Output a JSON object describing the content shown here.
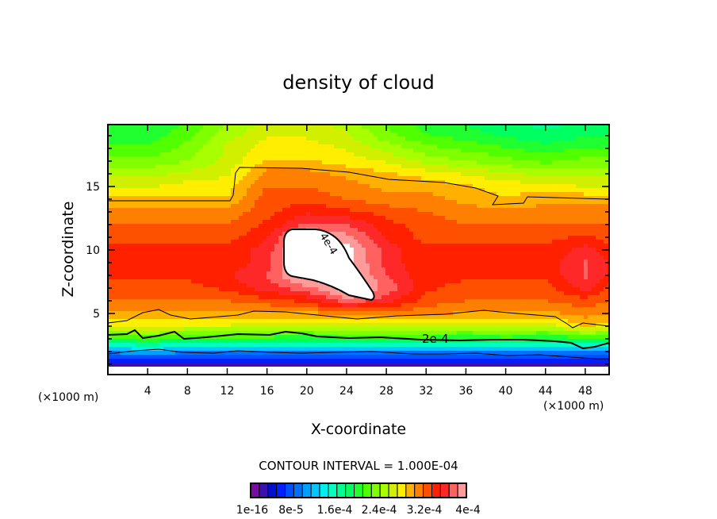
{
  "chart_data": {
    "type": "heatmap",
    "subtype": "filled-contour",
    "title": "density of cloud",
    "xlabel": "X-coordinate",
    "ylabel": "Z-coordinate",
    "x_unit_label": "(×1000 m)",
    "z_unit_label": "(×1000 m)",
    "xlim": [
      0,
      50.4
    ],
    "ylim": [
      0.19,
      19.875
    ],
    "x_ticks": [
      4,
      8,
      12,
      16,
      20,
      24,
      28,
      32,
      36,
      40,
      44,
      48
    ],
    "y_ticks": [
      5,
      10,
      15
    ],
    "contour_interval_text": "CONTOUR INTERVAL = 1.000E-04",
    "contour_labels": [
      "2e-4",
      "4e-4"
    ],
    "colorbar": {
      "labels": [
        "1e-16",
        "8e-5",
        "1.6e-4",
        "2.4e-4",
        "3.2e-4",
        "4e-4"
      ],
      "range": [
        0,
        0.0004
      ],
      "levels": 25,
      "colors": [
        "#7a0aa5",
        "#3a10b0",
        "#0010d0",
        "#0020ff",
        "#0050ff",
        "#0070ff",
        "#00a0ff",
        "#00c8ff",
        "#00f0f0",
        "#00ffc0",
        "#00ff90",
        "#00ff60",
        "#20ff30",
        "#50ff00",
        "#80ff00",
        "#a8ff00",
        "#d0f000",
        "#ffee00",
        "#ffb000",
        "#ff8000",
        "#ff5000",
        "#ff2000",
        "#ff2828",
        "#ff6060",
        "#ff9a9a"
      ]
    },
    "value_scale": 0.0001,
    "grid_x": [
      0,
      4,
      8,
      12,
      16,
      20,
      24,
      28,
      32,
      36,
      40,
      44,
      48,
      50.4
    ],
    "grid_z": [
      20,
      19,
      18,
      17,
      16,
      15,
      14,
      13,
      12,
      11,
      10,
      9,
      8,
      7,
      6,
      5,
      4,
      3,
      2,
      1,
      0
    ],
    "values": [
      [
        1.9,
        1.9,
        2.1,
        2.4,
        2.6,
        2.6,
        2.5,
        2.2,
        2.0,
        1.9,
        1.8,
        1.7,
        1.8,
        1.8
      ],
      [
        2.0,
        2.0,
        2.2,
        2.5,
        2.7,
        2.7,
        2.6,
        2.3,
        2.1,
        2.0,
        1.9,
        1.8,
        1.9,
        1.9
      ],
      [
        2.1,
        2.1,
        2.3,
        2.6,
        2.8,
        2.8,
        2.7,
        2.5,
        2.3,
        2.2,
        2.1,
        2.0,
        2.1,
        2.1
      ],
      [
        2.3,
        2.3,
        2.4,
        2.6,
        2.9,
        2.9,
        2.8,
        2.7,
        2.5,
        2.4,
        2.3,
        2.2,
        2.3,
        2.3
      ],
      [
        2.5,
        2.5,
        2.6,
        2.7,
        3.1,
        3.1,
        3.0,
        2.9,
        2.8,
        2.7,
        2.6,
        2.5,
        2.5,
        2.5
      ],
      [
        2.7,
        2.7,
        2.8,
        2.8,
        3.2,
        3.2,
        3.1,
        3.0,
        3.0,
        2.9,
        2.8,
        2.8,
        2.7,
        2.7
      ],
      [
        2.9,
        2.9,
        2.9,
        2.9,
        3.3,
        3.3,
        3.2,
        3.1,
        3.1,
        3.0,
        2.9,
        3.0,
        3.0,
        3.0
      ],
      [
        3.1,
        3.1,
        3.1,
        3.1,
        3.3,
        3.5,
        3.4,
        3.3,
        3.2,
        3.1,
        3.1,
        3.1,
        3.1,
        3.1
      ],
      [
        3.2,
        3.2,
        3.2,
        3.2,
        3.4,
        3.7,
        3.7,
        3.4,
        3.3,
        3.2,
        3.2,
        3.2,
        3.2,
        3.2
      ],
      [
        3.3,
        3.3,
        3.3,
        3.3,
        3.5,
        4.1,
        3.9,
        3.5,
        3.3,
        3.3,
        3.3,
        3.3,
        3.4,
        3.3
      ],
      [
        3.4,
        3.4,
        3.4,
        3.4,
        3.6,
        4.2,
        4.1,
        3.6,
        3.4,
        3.4,
        3.4,
        3.4,
        3.6,
        3.4
      ],
      [
        3.4,
        3.4,
        3.4,
        3.4,
        3.6,
        4.2,
        4.1,
        3.6,
        3.4,
        3.4,
        3.4,
        3.4,
        3.7,
        3.5
      ],
      [
        3.4,
        3.4,
        3.4,
        3.5,
        3.7,
        4.1,
        4.1,
        3.7,
        3.4,
        3.4,
        3.4,
        3.4,
        3.7,
        3.5
      ],
      [
        3.3,
        3.3,
        3.3,
        3.4,
        3.6,
        3.8,
        4.1,
        3.8,
        3.4,
        3.3,
        3.3,
        3.3,
        3.6,
        3.3
      ],
      [
        3.2,
        3.2,
        3.2,
        3.2,
        3.3,
        3.4,
        3.8,
        3.6,
        3.3,
        3.2,
        3.2,
        3.2,
        3.3,
        3.2
      ],
      [
        3.0,
        3.0,
        3.0,
        3.0,
        3.0,
        3.0,
        3.1,
        3.1,
        3.1,
        3.0,
        3.0,
        3.0,
        3.1,
        3.1
      ],
      [
        2.7,
        2.8,
        2.7,
        2.7,
        2.6,
        2.6,
        2.6,
        2.6,
        2.6,
        2.6,
        2.6,
        2.6,
        2.9,
        2.8
      ],
      [
        2.0,
        2.1,
        2.0,
        2.0,
        2.0,
        1.9,
        2.0,
        2.0,
        2.0,
        1.9,
        2.0,
        1.9,
        2.0,
        2.0
      ],
      [
        1.0,
        1.1,
        1.0,
        1.0,
        1.0,
        1.0,
        1.0,
        1.0,
        1.0,
        1.0,
        1.0,
        1.0,
        1.0,
        1.0
      ],
      [
        0.3,
        0.3,
        0.3,
        0.3,
        0.3,
        0.3,
        0.3,
        0.3,
        0.3,
        0.3,
        0.3,
        0.3,
        0.3,
        0.3
      ],
      [
        -1,
        -1,
        -1,
        -1,
        -1,
        -1,
        -1,
        -1,
        -1,
        -1,
        -1,
        -1,
        -1,
        -1
      ]
    ]
  }
}
